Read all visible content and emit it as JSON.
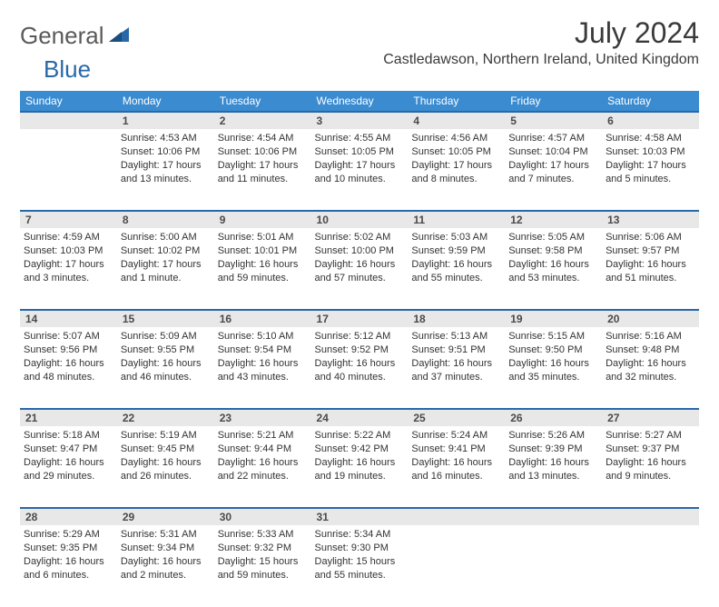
{
  "header": {
    "logo_general": "General",
    "logo_blue": "Blue",
    "month_title": "July 2024",
    "location": "Castledawson, Northern Ireland, United Kingdom"
  },
  "colors": {
    "header_bg": "#3a8bd0",
    "accent_border": "#2968a8",
    "daynum_bg": "#e8e8e8"
  },
  "day_names": [
    "Sunday",
    "Monday",
    "Tuesday",
    "Wednesday",
    "Thursday",
    "Friday",
    "Saturday"
  ],
  "weeks": [
    {
      "nums": [
        "",
        "1",
        "2",
        "3",
        "4",
        "5",
        "6"
      ],
      "cells": [
        {
          "lines": []
        },
        {
          "lines": [
            "Sunrise: 4:53 AM",
            "Sunset: 10:06 PM",
            "Daylight: 17 hours",
            "and 13 minutes."
          ]
        },
        {
          "lines": [
            "Sunrise: 4:54 AM",
            "Sunset: 10:06 PM",
            "Daylight: 17 hours",
            "and 11 minutes."
          ]
        },
        {
          "lines": [
            "Sunrise: 4:55 AM",
            "Sunset: 10:05 PM",
            "Daylight: 17 hours",
            "and 10 minutes."
          ]
        },
        {
          "lines": [
            "Sunrise: 4:56 AM",
            "Sunset: 10:05 PM",
            "Daylight: 17 hours",
            "and 8 minutes."
          ]
        },
        {
          "lines": [
            "Sunrise: 4:57 AM",
            "Sunset: 10:04 PM",
            "Daylight: 17 hours",
            "and 7 minutes."
          ]
        },
        {
          "lines": [
            "Sunrise: 4:58 AM",
            "Sunset: 10:03 PM",
            "Daylight: 17 hours",
            "and 5 minutes."
          ]
        }
      ]
    },
    {
      "nums": [
        "7",
        "8",
        "9",
        "10",
        "11",
        "12",
        "13"
      ],
      "cells": [
        {
          "lines": [
            "Sunrise: 4:59 AM",
            "Sunset: 10:03 PM",
            "Daylight: 17 hours",
            "and 3 minutes."
          ]
        },
        {
          "lines": [
            "Sunrise: 5:00 AM",
            "Sunset: 10:02 PM",
            "Daylight: 17 hours",
            "and 1 minute."
          ]
        },
        {
          "lines": [
            "Sunrise: 5:01 AM",
            "Sunset: 10:01 PM",
            "Daylight: 16 hours",
            "and 59 minutes."
          ]
        },
        {
          "lines": [
            "Sunrise: 5:02 AM",
            "Sunset: 10:00 PM",
            "Daylight: 16 hours",
            "and 57 minutes."
          ]
        },
        {
          "lines": [
            "Sunrise: 5:03 AM",
            "Sunset: 9:59 PM",
            "Daylight: 16 hours",
            "and 55 minutes."
          ]
        },
        {
          "lines": [
            "Sunrise: 5:05 AM",
            "Sunset: 9:58 PM",
            "Daylight: 16 hours",
            "and 53 minutes."
          ]
        },
        {
          "lines": [
            "Sunrise: 5:06 AM",
            "Sunset: 9:57 PM",
            "Daylight: 16 hours",
            "and 51 minutes."
          ]
        }
      ]
    },
    {
      "nums": [
        "14",
        "15",
        "16",
        "17",
        "18",
        "19",
        "20"
      ],
      "cells": [
        {
          "lines": [
            "Sunrise: 5:07 AM",
            "Sunset: 9:56 PM",
            "Daylight: 16 hours",
            "and 48 minutes."
          ]
        },
        {
          "lines": [
            "Sunrise: 5:09 AM",
            "Sunset: 9:55 PM",
            "Daylight: 16 hours",
            "and 46 minutes."
          ]
        },
        {
          "lines": [
            "Sunrise: 5:10 AM",
            "Sunset: 9:54 PM",
            "Daylight: 16 hours",
            "and 43 minutes."
          ]
        },
        {
          "lines": [
            "Sunrise: 5:12 AM",
            "Sunset: 9:52 PM",
            "Daylight: 16 hours",
            "and 40 minutes."
          ]
        },
        {
          "lines": [
            "Sunrise: 5:13 AM",
            "Sunset: 9:51 PM",
            "Daylight: 16 hours",
            "and 37 minutes."
          ]
        },
        {
          "lines": [
            "Sunrise: 5:15 AM",
            "Sunset: 9:50 PM",
            "Daylight: 16 hours",
            "and 35 minutes."
          ]
        },
        {
          "lines": [
            "Sunrise: 5:16 AM",
            "Sunset: 9:48 PM",
            "Daylight: 16 hours",
            "and 32 minutes."
          ]
        }
      ]
    },
    {
      "nums": [
        "21",
        "22",
        "23",
        "24",
        "25",
        "26",
        "27"
      ],
      "cells": [
        {
          "lines": [
            "Sunrise: 5:18 AM",
            "Sunset: 9:47 PM",
            "Daylight: 16 hours",
            "and 29 minutes."
          ]
        },
        {
          "lines": [
            "Sunrise: 5:19 AM",
            "Sunset: 9:45 PM",
            "Daylight: 16 hours",
            "and 26 minutes."
          ]
        },
        {
          "lines": [
            "Sunrise: 5:21 AM",
            "Sunset: 9:44 PM",
            "Daylight: 16 hours",
            "and 22 minutes."
          ]
        },
        {
          "lines": [
            "Sunrise: 5:22 AM",
            "Sunset: 9:42 PM",
            "Daylight: 16 hours",
            "and 19 minutes."
          ]
        },
        {
          "lines": [
            "Sunrise: 5:24 AM",
            "Sunset: 9:41 PM",
            "Daylight: 16 hours",
            "and 16 minutes."
          ]
        },
        {
          "lines": [
            "Sunrise: 5:26 AM",
            "Sunset: 9:39 PM",
            "Daylight: 16 hours",
            "and 13 minutes."
          ]
        },
        {
          "lines": [
            "Sunrise: 5:27 AM",
            "Sunset: 9:37 PM",
            "Daylight: 16 hours",
            "and 9 minutes."
          ]
        }
      ]
    },
    {
      "nums": [
        "28",
        "29",
        "30",
        "31",
        "",
        "",
        ""
      ],
      "cells": [
        {
          "lines": [
            "Sunrise: 5:29 AM",
            "Sunset: 9:35 PM",
            "Daylight: 16 hours",
            "and 6 minutes."
          ]
        },
        {
          "lines": [
            "Sunrise: 5:31 AM",
            "Sunset: 9:34 PM",
            "Daylight: 16 hours",
            "and 2 minutes."
          ]
        },
        {
          "lines": [
            "Sunrise: 5:33 AM",
            "Sunset: 9:32 PM",
            "Daylight: 15 hours",
            "and 59 minutes."
          ]
        },
        {
          "lines": [
            "Sunrise: 5:34 AM",
            "Sunset: 9:30 PM",
            "Daylight: 15 hours",
            "and 55 minutes."
          ]
        },
        {
          "lines": []
        },
        {
          "lines": []
        },
        {
          "lines": []
        }
      ]
    }
  ]
}
